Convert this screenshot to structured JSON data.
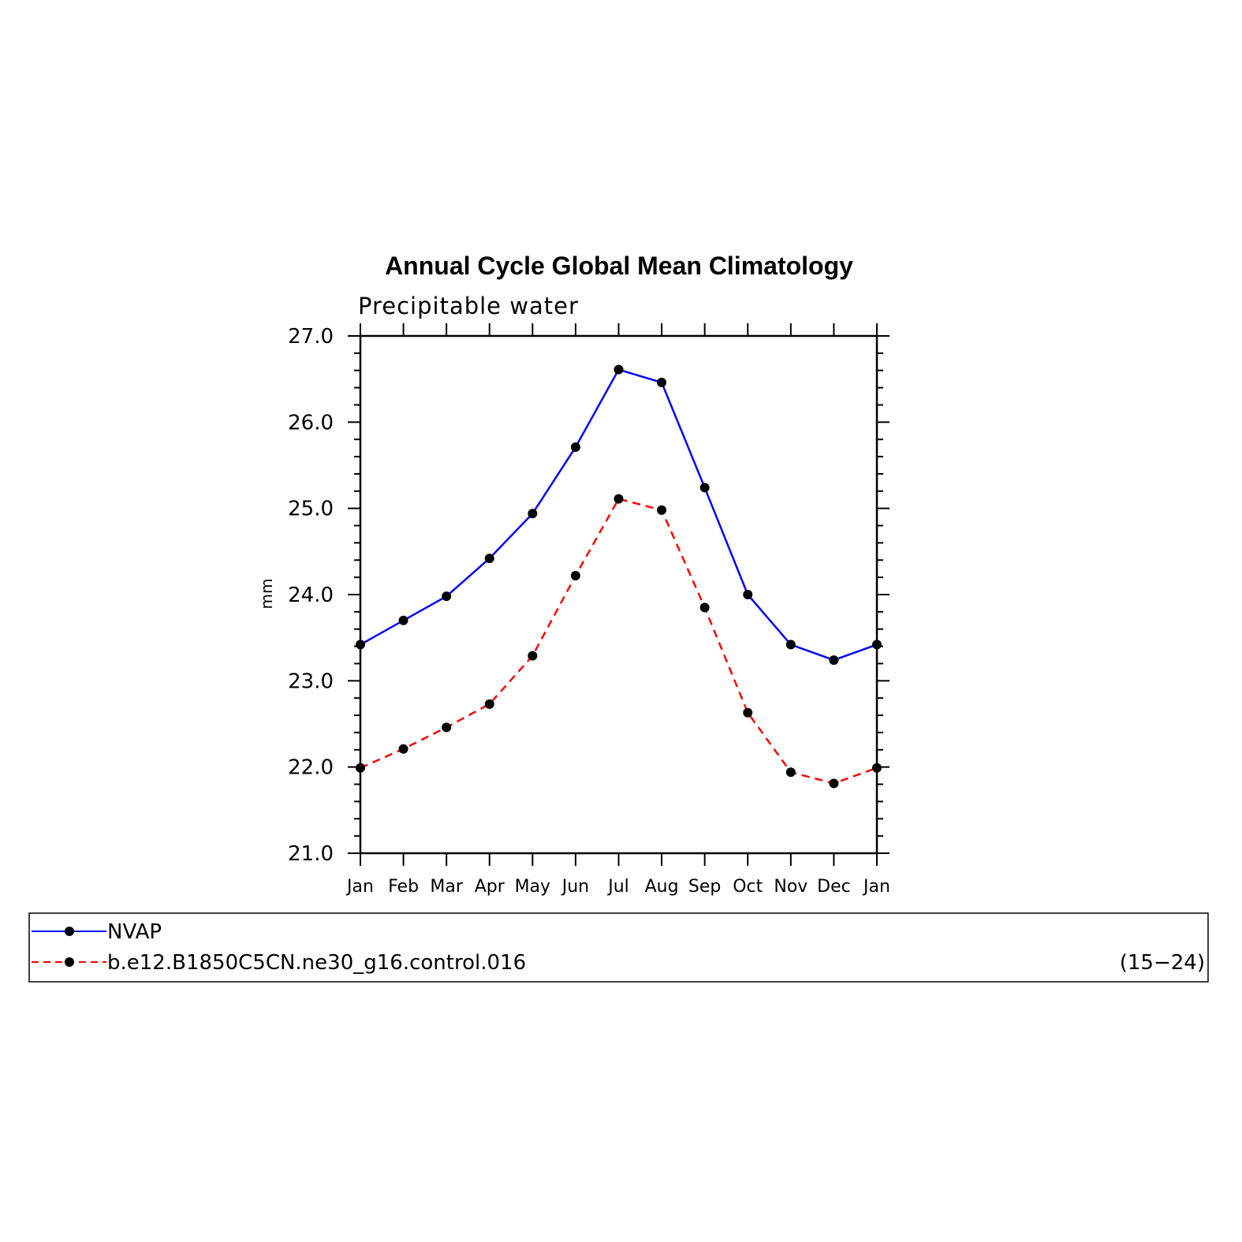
{
  "chart_data": {
    "type": "line",
    "title": "Annual Cycle Global Mean Climatology",
    "subtitle": "Precipitable water",
    "ylabel": "mm",
    "xlabel": "",
    "ylim": [
      21.0,
      27.0
    ],
    "yticks": [
      "21.0",
      "22.0",
      "23.0",
      "24.0",
      "25.0",
      "26.0",
      "27.0"
    ],
    "categories": [
      "Jan",
      "Feb",
      "Mar",
      "Apr",
      "May",
      "Jun",
      "Jul",
      "Aug",
      "Sep",
      "Oct",
      "Nov",
      "Dec",
      "Jan"
    ],
    "grid": false,
    "legend_placement": "bottom",
    "series": [
      {
        "name": "NVAP",
        "color": "#0000ff",
        "dash": "solid",
        "values": [
          23.42,
          23.7,
          23.98,
          24.42,
          24.94,
          25.71,
          26.61,
          26.46,
          25.24,
          24.0,
          23.42,
          23.24,
          23.42
        ]
      },
      {
        "name": "b.e12.B1850C5CN.ne30_g16.control.016",
        "color": "#ff0000",
        "dash": "dashed",
        "values": [
          21.99,
          22.21,
          22.46,
          22.73,
          23.29,
          24.22,
          25.11,
          24.98,
          23.85,
          22.63,
          21.94,
          21.81,
          21.99
        ]
      }
    ],
    "legend_note": "(15−24)"
  }
}
